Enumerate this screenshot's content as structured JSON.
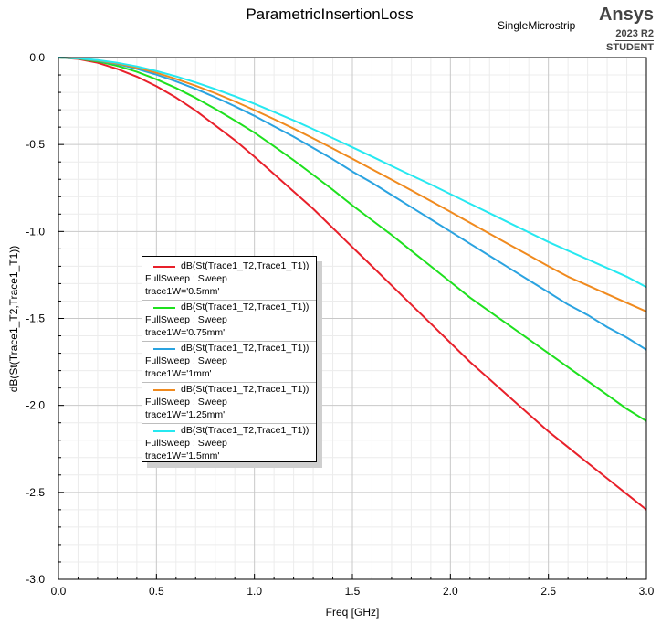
{
  "title": "ParametricInsertionLoss",
  "subtitle": "SingleMicrostrip",
  "brand": {
    "name": "Ansys",
    "version": "2023 R2",
    "edition": "STUDENT"
  },
  "chart_data": {
    "type": "line",
    "title": "ParametricInsertionLoss",
    "xlabel": "Freq [GHz]",
    "ylabel": "dB(St(Trace1_T2,Trace1_T1))",
    "xlim": [
      0,
      3
    ],
    "ylim": [
      -3,
      0
    ],
    "xticks": [
      "0.0",
      "0.5",
      "1.0",
      "1.5",
      "2.0",
      "2.5",
      "3.0"
    ],
    "yticks": [
      "0.0",
      "-0.5",
      "-1.0",
      "-1.5",
      "-2.0",
      "-2.5",
      "-3.0"
    ],
    "grid": true,
    "legend_position": "center-left",
    "x": [
      0,
      0.1,
      0.2,
      0.3,
      0.4,
      0.5,
      0.6,
      0.7,
      0.8,
      0.9,
      1.0,
      1.1,
      1.2,
      1.3,
      1.4,
      1.5,
      1.6,
      1.7,
      1.8,
      1.9,
      2.0,
      2.1,
      2.2,
      2.3,
      2.4,
      2.5,
      2.6,
      2.7,
      2.8,
      2.9,
      3.0
    ],
    "series": [
      {
        "name": "dB(St(Trace1_T2,Trace1_T1))",
        "sweep": "FullSweep : Sweep",
        "variable": "trace1W='0.5mm'",
        "color": "#e8202a",
        "values": [
          0,
          -0.008,
          -0.03,
          -0.065,
          -0.11,
          -0.165,
          -0.23,
          -0.305,
          -0.39,
          -0.475,
          -0.57,
          -0.67,
          -0.77,
          -0.87,
          -0.98,
          -1.09,
          -1.2,
          -1.31,
          -1.42,
          -1.53,
          -1.64,
          -1.75,
          -1.85,
          -1.95,
          -2.05,
          -2.15,
          -2.24,
          -2.33,
          -2.42,
          -2.51,
          -2.6
        ]
      },
      {
        "name": "dB(St(Trace1_T2,Trace1_T1))",
        "sweep": "FullSweep : Sweep",
        "variable": "trace1W='0.75mm'",
        "color": "#1ee01e",
        "values": [
          0,
          -0.006,
          -0.022,
          -0.048,
          -0.082,
          -0.125,
          -0.175,
          -0.232,
          -0.295,
          -0.362,
          -0.432,
          -0.51,
          -0.59,
          -0.675,
          -0.76,
          -0.85,
          -0.935,
          -1.02,
          -1.11,
          -1.2,
          -1.29,
          -1.38,
          -1.46,
          -1.54,
          -1.62,
          -1.7,
          -1.78,
          -1.86,
          -1.94,
          -2.02,
          -2.09
        ]
      },
      {
        "name": "dB(St(Trace1_T2,Trace1_T1))",
        "sweep": "FullSweep : Sweep",
        "variable": "trace1W='1mm'",
        "color": "#2aa3e0",
        "values": [
          0,
          -0.005,
          -0.018,
          -0.038,
          -0.065,
          -0.098,
          -0.137,
          -0.18,
          -0.228,
          -0.28,
          -0.335,
          -0.395,
          -0.455,
          -0.52,
          -0.585,
          -0.655,
          -0.72,
          -0.79,
          -0.86,
          -0.93,
          -1.0,
          -1.07,
          -1.14,
          -1.21,
          -1.28,
          -1.35,
          -1.42,
          -1.48,
          -1.55,
          -1.61,
          -1.68
        ]
      },
      {
        "name": "dB(St(Trace1_T2,Trace1_T1))",
        "sweep": "FullSweep : Sweep",
        "variable": "trace1W='1.25mm'",
        "color": "#f08a1e",
        "values": [
          0,
          -0.004,
          -0.016,
          -0.034,
          -0.058,
          -0.088,
          -0.123,
          -0.162,
          -0.205,
          -0.252,
          -0.302,
          -0.354,
          -0.408,
          -0.465,
          -0.523,
          -0.582,
          -0.642,
          -0.702,
          -0.763,
          -0.825,
          -0.887,
          -0.95,
          -1.013,
          -1.075,
          -1.137,
          -1.2,
          -1.26,
          -1.31,
          -1.36,
          -1.41,
          -1.46
        ]
      },
      {
        "name": "dB(St(Trace1_T2,Trace1_T1))",
        "sweep": "FullSweep : Sweep",
        "variable": "trace1W='1.5mm'",
        "color": "#26e8f0",
        "values": [
          0,
          -0.004,
          -0.014,
          -0.03,
          -0.051,
          -0.077,
          -0.108,
          -0.143,
          -0.181,
          -0.222,
          -0.266,
          -0.313,
          -0.361,
          -0.412,
          -0.463,
          -0.516,
          -0.569,
          -0.623,
          -0.677,
          -0.73,
          -0.785,
          -0.84,
          -0.895,
          -0.95,
          -1.005,
          -1.06,
          -1.11,
          -1.16,
          -1.21,
          -1.26,
          -1.32
        ]
      }
    ]
  }
}
